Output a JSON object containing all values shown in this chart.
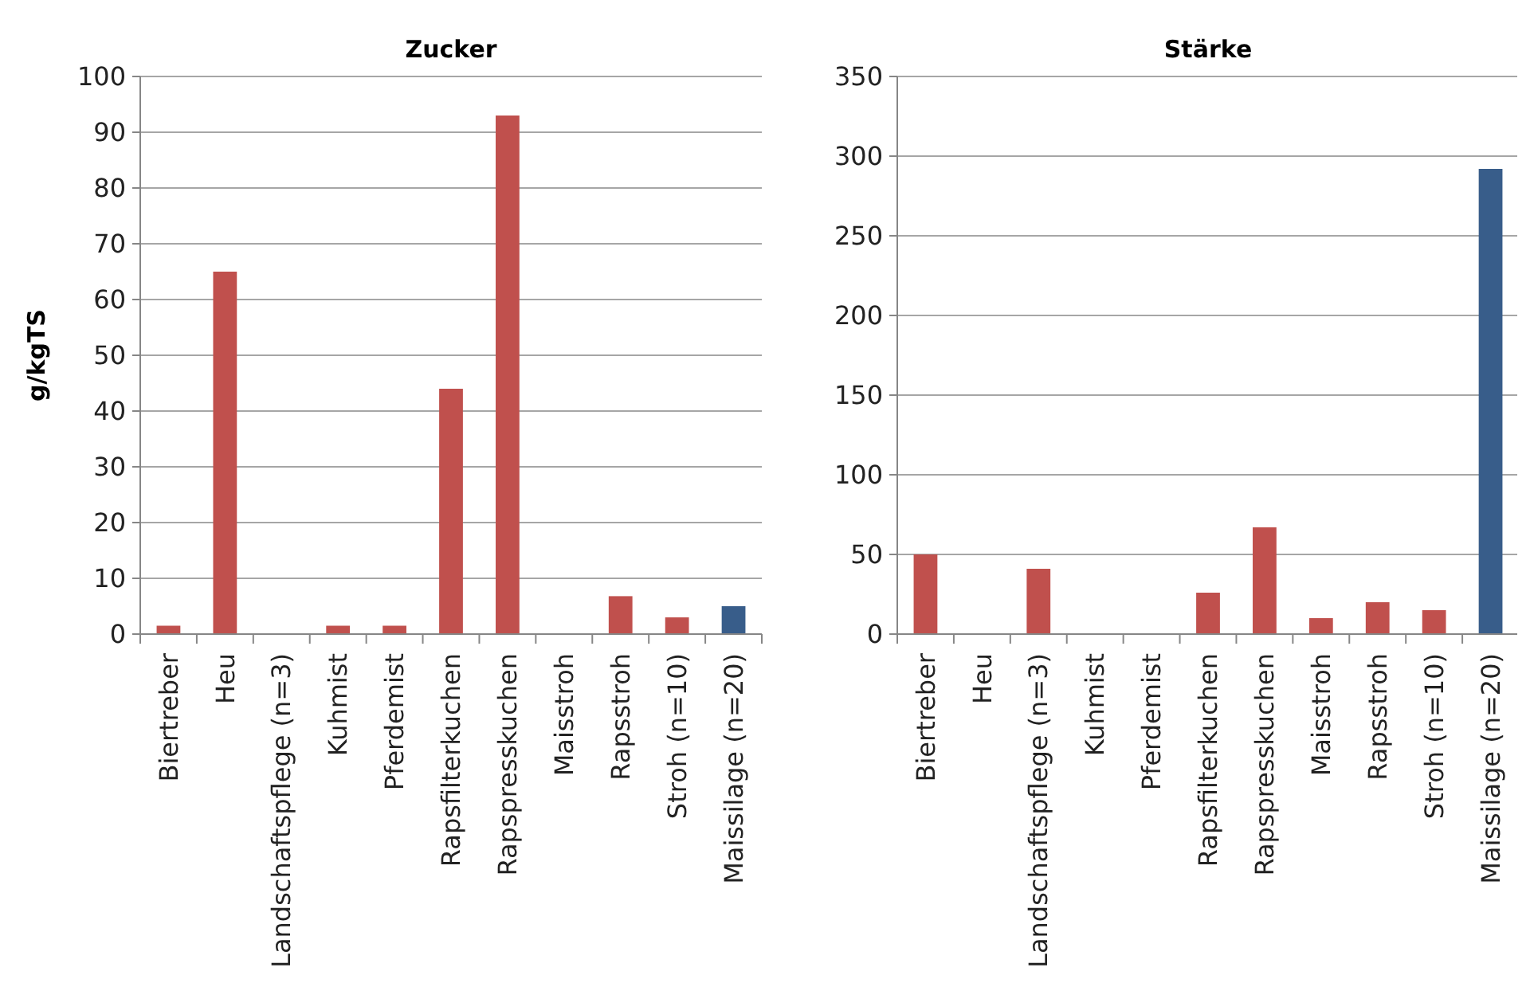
{
  "chart_data": [
    {
      "type": "bar",
      "title": "Zucker",
      "ylabel": "g/kgTS",
      "categories": [
        "Biertreber",
        "Heu",
        "Landschaftspflege (n=3)",
        "Kuhmist",
        "Pferdemist",
        "Rapsfilterkuchen",
        "Rapspresskuchen",
        "Maisstroh",
        "Rapsstroh",
        "Stroh (n=10)",
        "Maissilage (n=20)"
      ],
      "values": [
        1.5,
        65,
        0,
        1.5,
        1.5,
        44,
        93,
        0,
        6.8,
        3,
        5
      ],
      "colors": [
        "#c0504d",
        "#c0504d",
        "#c0504d",
        "#c0504d",
        "#c0504d",
        "#c0504d",
        "#c0504d",
        "#c0504d",
        "#c0504d",
        "#c0504d",
        "#385d8a"
      ],
      "ylim": [
        0,
        100
      ],
      "yticks": [
        0,
        10,
        20,
        30,
        40,
        50,
        60,
        70,
        80,
        90,
        100
      ],
      "grid": "y"
    },
    {
      "type": "bar",
      "title": "Stärke",
      "categories": [
        "Biertreber",
        "Heu",
        "Landschaftspflege (n=3)",
        "Kuhmist",
        "Pferdemist",
        "Rapsfilterkuchen",
        "Rapspresskuchen",
        "Maisstroh",
        "Rapsstroh",
        "Stroh (n=10)",
        "Maissilage (n=20)"
      ],
      "values": [
        50,
        0,
        41,
        0,
        0,
        26,
        67,
        10,
        20,
        15,
        292
      ],
      "colors": [
        "#c0504d",
        "#c0504d",
        "#c0504d",
        "#c0504d",
        "#c0504d",
        "#c0504d",
        "#c0504d",
        "#c0504d",
        "#c0504d",
        "#c0504d",
        "#385d8a"
      ],
      "ylim": [
        0,
        350
      ],
      "yticks": [
        0,
        50,
        100,
        150,
        200,
        250,
        300,
        350
      ],
      "grid": "y"
    }
  ]
}
